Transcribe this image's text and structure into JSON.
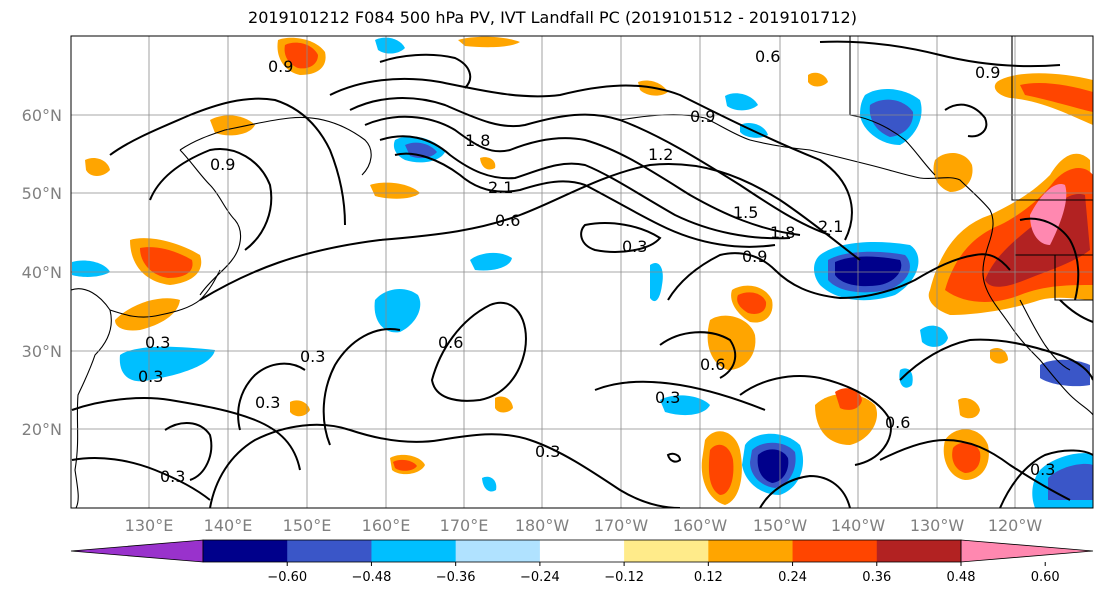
{
  "title": "2019101212 F084 500 hPa PV, IVT Landfall PC (2019101512 - 2019101712)",
  "map": {
    "lat_labels": [
      "60°N",
      "50°N",
      "40°N",
      "30°N",
      "20°N"
    ],
    "lon_labels": [
      "130°E",
      "140°E",
      "150°E",
      "160°E",
      "170°E",
      "180°W",
      "170°W",
      "160°W",
      "150°W",
      "140°W",
      "130°W",
      "120°W"
    ],
    "contour_labels": [
      "0.9",
      "0.6",
      "0.9",
      "1.8",
      "2.1",
      "0.6",
      "0.9",
      "1.2",
      "1.5",
      "1.8",
      "2.1",
      "0.3",
      "0.3",
      "0.6",
      "0.3",
      "0.6",
      "0.3",
      "0.3",
      "0.3",
      "0.6",
      "0.3",
      "0.3",
      "0.9",
      "0.9",
      "0.3"
    ]
  },
  "colorbar": {
    "colors": [
      "#9932cc",
      "#00008b",
      "#3a56c8",
      "#00bfff",
      "#b0e2ff",
      "#ffffff",
      "#ffeb8a",
      "#ffa500",
      "#ff4500",
      "#b22222",
      "#ff88b0"
    ],
    "ticks": [
      "−0.60",
      "−0.48",
      "−0.36",
      "−0.24",
      "−0.12",
      "0.12",
      "0.24",
      "0.36",
      "0.48",
      "0.60"
    ]
  }
}
